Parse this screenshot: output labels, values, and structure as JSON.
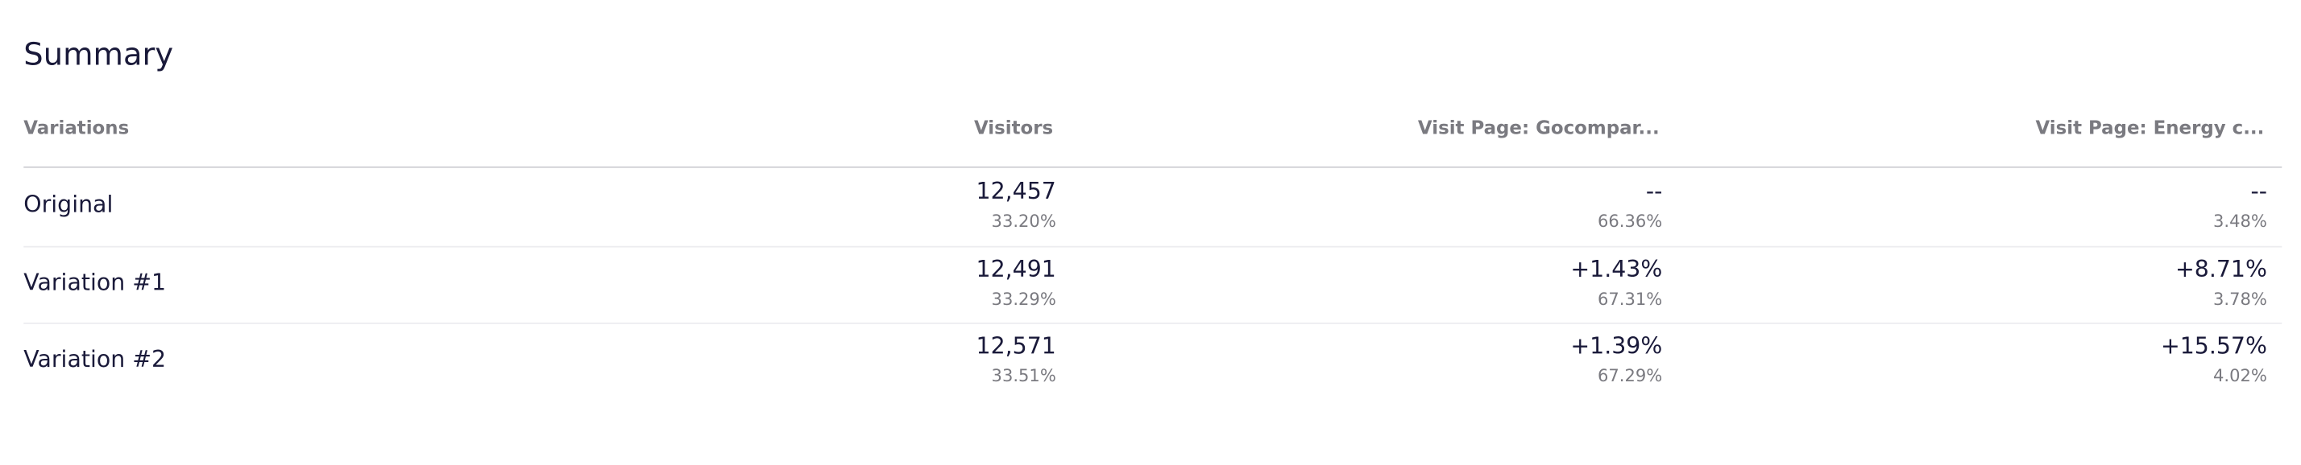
{
  "header": {
    "title": "Summary"
  },
  "table": {
    "columns": [
      "Variations",
      "Visitors",
      "Visit Page: Gocompar...",
      "Visit Page: Energy c..."
    ],
    "rows": [
      {
        "label": "Original",
        "cells": [
          {
            "main": "12,457",
            "sub": "33.20%"
          },
          {
            "main": "--",
            "sub": "66.36%"
          },
          {
            "main": "--",
            "sub": "3.48%"
          }
        ]
      },
      {
        "label": "Variation #1",
        "cells": [
          {
            "main": "12,491",
            "sub": "33.29%"
          },
          {
            "main": "+1.43%",
            "sub": "67.31%"
          },
          {
            "main": "+8.71%",
            "sub": "3.78%"
          }
        ]
      },
      {
        "label": "Variation #2",
        "cells": [
          {
            "main": "12,571",
            "sub": "33.51%"
          },
          {
            "main": "+1.39%",
            "sub": "67.29%"
          },
          {
            "main": "+15.57%",
            "sub": "4.02%"
          }
        ]
      }
    ]
  }
}
